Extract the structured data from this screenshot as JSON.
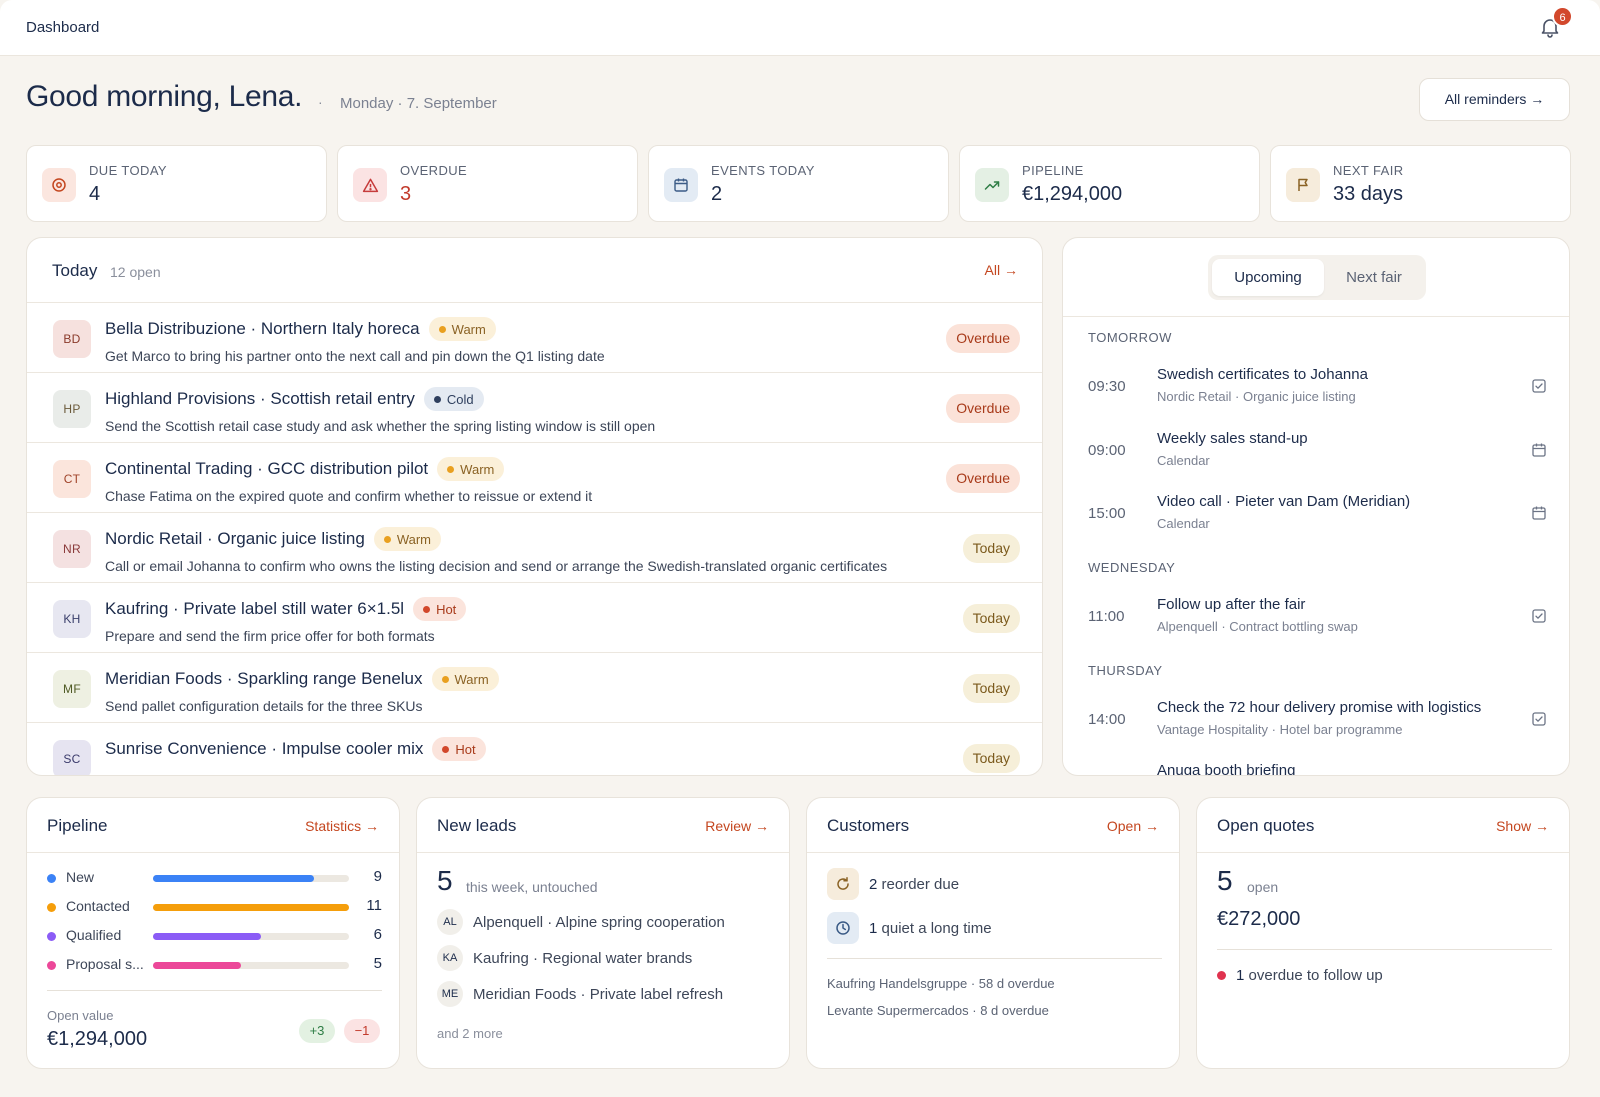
{
  "topbar": {
    "breadcrumb": "Dashboard",
    "notifications": "6"
  },
  "header": {
    "greeting": "Good morning, Lena.",
    "separator": "·",
    "date": "Monday · 7. September",
    "reminders_button": "All reminders →"
  },
  "kpis": [
    {
      "label": "DUE TODAY",
      "value": "4",
      "icon": "target-icon",
      "icon_bg": "#fbe6df",
      "icon_color": "#c4461f",
      "value_color": "#1c2b4a"
    },
    {
      "label": "OVERDUE",
      "value": "3",
      "icon": "alert-triangle-icon",
      "icon_bg": "#fbe3e3",
      "icon_color": "#c63b3b",
      "value_color": "#c23a2b"
    },
    {
      "label": "EVENTS TODAY",
      "value": "2",
      "icon": "calendar-icon",
      "icon_bg": "#e3ebf4",
      "icon_color": "#3b5b86",
      "value_color": "#1c2b4a"
    },
    {
      "label": "PIPELINE",
      "value": "€1,294,000",
      "icon": "trending-up-icon",
      "icon_bg": "#e4f0e4",
      "icon_color": "#2e7d45",
      "value_color": "#1c2b4a"
    },
    {
      "label": "NEXT FAIR",
      "value": "33 days",
      "icon": "flag-icon",
      "icon_bg": "#f6ecdc",
      "icon_color": "#8a6224",
      "value_color": "#1c2b4a"
    }
  ],
  "today": {
    "title": "Today",
    "count": "12 open",
    "all_link": "All →",
    "tasks": [
      {
        "initials": "BD",
        "avatar_bg": "#f6e1de",
        "avatar_color": "#8a3a2a",
        "name": "Bella Distribuzione · Northern Italy horeca",
        "tag": "Warm",
        "desc": "Get Marco to bring his partner onto the next call and pin down the Q1 listing date",
        "status": "Overdue"
      },
      {
        "initials": "HP",
        "avatar_bg": "#e9ece9",
        "avatar_color": "#6b5a3a",
        "name": "Highland Provisions · Scottish retail entry",
        "tag": "Cold",
        "desc": "Send the Scottish retail case study and ask whether the spring listing window is still open",
        "status": "Overdue"
      },
      {
        "initials": "CT",
        "avatar_bg": "#fbe5dc",
        "avatar_color": "#a0442a",
        "name": "Continental Trading · GCC distribution pilot",
        "tag": "Warm",
        "desc": "Chase Fatima on the expired quote and confirm whether to reissue or extend it",
        "status": "Overdue"
      },
      {
        "initials": "NR",
        "avatar_bg": "#f4e1e1",
        "avatar_color": "#8a3a3a",
        "name": "Nordic Retail · Organic juice listing",
        "tag": "Warm",
        "desc": "Call or email Johanna to confirm who owns the listing decision and send or arrange the Swedish-translated organic certificates",
        "status": "Today"
      },
      {
        "initials": "KH",
        "avatar_bg": "#e7e7f1",
        "avatar_color": "#3a3f6b",
        "name": "Kaufring · Private label still water 6×1.5l",
        "tag": "Hot",
        "desc": "Prepare and send the firm price offer for both formats",
        "status": "Today"
      },
      {
        "initials": "MF",
        "avatar_bg": "#eef0e2",
        "avatar_color": "#4f5a24",
        "name": "Meridian Foods · Sparkling range Benelux",
        "tag": "Warm",
        "desc": "Send pallet configuration details for the three SKUs",
        "status": "Today"
      },
      {
        "initials": "SC",
        "avatar_bg": "#e6e4f1",
        "avatar_color": "#3a3a6b",
        "name": "Sunrise Convenience · Impulse cooler mix",
        "tag": "Hot",
        "desc": "",
        "status": "Today"
      }
    ]
  },
  "tag_styles": {
    "Warm": {
      "bg": "#fbf0d9",
      "dot": "#e9a020",
      "color": "#8a6224"
    },
    "Cold": {
      "bg": "#e4eaf2",
      "dot": "#2e3f5e",
      "color": "#2e3f5e"
    },
    "Hot": {
      "bg": "#fbe4dc",
      "dot": "#d2482c",
      "color": "#a83a1a"
    }
  },
  "upcoming": {
    "tabs": [
      "Upcoming",
      "Next fair"
    ],
    "groups": [
      {
        "day": "TOMORROW",
        "events": [
          {
            "time": "09:30",
            "title": "Swedish certificates to Johanna",
            "sub": "Nordic Retail · Organic juice listing",
            "icon": "checkbox-icon"
          },
          {
            "time": "09:00",
            "title": "Weekly sales stand-up",
            "sub": "Calendar",
            "icon": "calendar-icon"
          },
          {
            "time": "15:00",
            "title": "Video call · Pieter van Dam (Meridian)",
            "sub": "Calendar",
            "icon": "calendar-icon"
          }
        ]
      },
      {
        "day": "WEDNESDAY",
        "events": [
          {
            "time": "11:00",
            "title": "Follow up after the fair",
            "sub": "Alpenquell · Contract bottling swap",
            "icon": "checkbox-icon"
          }
        ]
      },
      {
        "day": "THURSDAY",
        "events": [
          {
            "time": "14:00",
            "title": "Check the 72 hour delivery promise with logistics",
            "sub": "Vantage Hospitality · Hotel bar programme",
            "icon": "checkbox-icon"
          },
          {
            "time": "",
            "title": "Anuga booth briefing",
            "sub": "",
            "icon": "checkbox-icon"
          }
        ]
      }
    ]
  },
  "pipeline": {
    "title": "Pipeline",
    "link": "Statistics →",
    "stages": [
      {
        "name": "New",
        "count": "9",
        "color": "#3b82f6",
        "fill": 0.82
      },
      {
        "name": "Contacted",
        "count": "11",
        "color": "#f59e0b",
        "fill": 1.0
      },
      {
        "name": "Qualified",
        "count": "6",
        "color": "#8b5cf6",
        "fill": 0.55
      },
      {
        "name": "Proposal s...",
        "count": "5",
        "color": "#ec4899",
        "fill": 0.45
      }
    ],
    "open_value_label": "Open value",
    "open_value": "€1,294,000",
    "delta_up": "+3",
    "delta_down": "−1"
  },
  "new_leads": {
    "title": "New leads",
    "link": "Review →",
    "count": "5",
    "count_label": "this week, untouched",
    "items": [
      {
        "initials": "AL",
        "text": "Alpenquell · Alpine spring cooperation"
      },
      {
        "initials": "KA",
        "text": "Kaufring · Regional water brands"
      },
      {
        "initials": "ME",
        "text": "Meridian Foods · Private label refresh"
      }
    ],
    "more": "and 2 more"
  },
  "customers": {
    "title": "Customers",
    "link": "Open →",
    "reorder_count": "2",
    "reorder_label": "reorder due",
    "quiet_count": "1",
    "quiet_label": "quiet a long time",
    "overdue": [
      "Kaufring Handelsgruppe · 58 d overdue",
      "Levante Supermercados · 8 d overdue"
    ]
  },
  "quotes": {
    "title": "Open quotes",
    "link": "Show →",
    "count": "5",
    "count_label": "open",
    "amount": "€272,000",
    "followup_count": "1",
    "followup_label": "overdue to follow up"
  }
}
